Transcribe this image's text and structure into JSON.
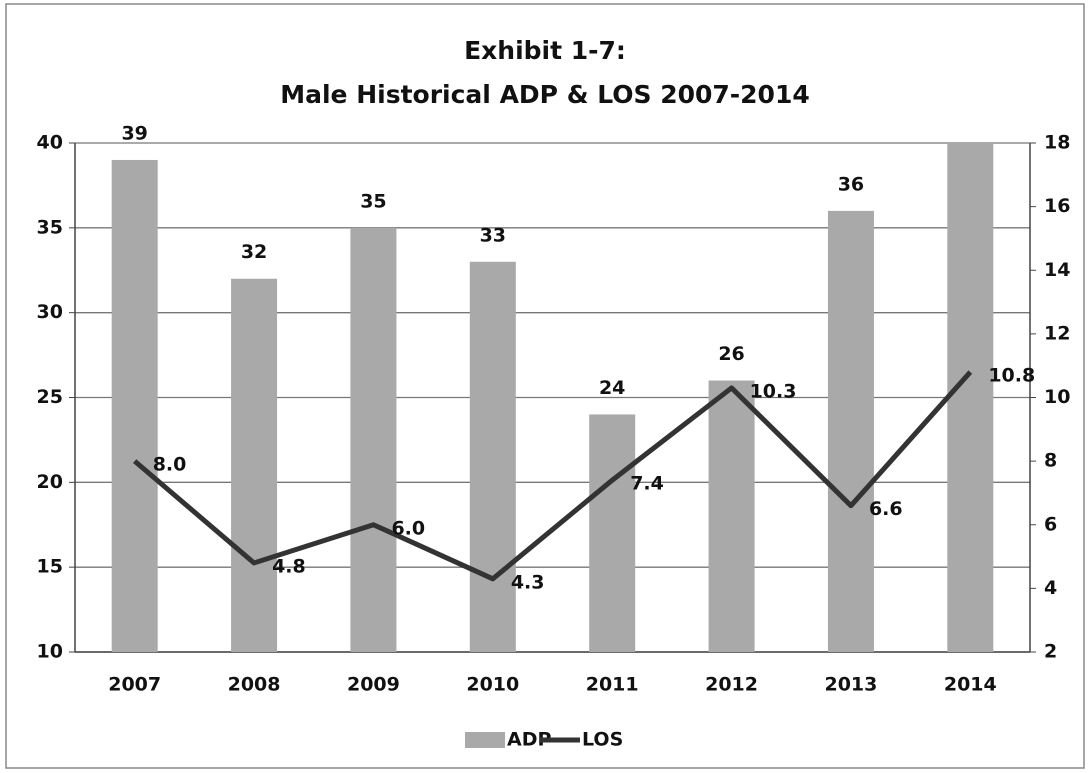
{
  "chart_data": {
    "type": "bar_line",
    "title": "Exhibit 1-7:",
    "subtitle": "Male Historical ADP & LOS 2007-2014",
    "categories": [
      "2007",
      "2008",
      "2009",
      "2010",
      "2011",
      "2012",
      "2013",
      "2014"
    ],
    "series": [
      {
        "name": "ADP",
        "type": "bar",
        "color": "#a9a9a9",
        "values": [
          39,
          32,
          35,
          33,
          24,
          26,
          36,
          40
        ],
        "value_labels": [
          "39",
          "32",
          "35",
          "33",
          "24",
          "26",
          "36",
          null
        ]
      },
      {
        "name": "LOS",
        "type": "line",
        "axis": "y2",
        "color": "#333333",
        "values": [
          8.0,
          4.8,
          6.0,
          4.3,
          7.4,
          10.3,
          6.6,
          10.8
        ],
        "value_labels": [
          "8.0",
          "4.8",
          "6.0",
          "4.3",
          "7.4",
          "10.3",
          "6.6",
          "10.8"
        ]
      }
    ],
    "ylim": [
      10,
      40
    ],
    "yticks": [
      10,
      15,
      20,
      25,
      30,
      35,
      40
    ],
    "y2lim": [
      2,
      18
    ],
    "y2ticks": [
      2,
      4,
      6,
      8,
      10,
      12,
      14,
      16,
      18
    ],
    "grid": true,
    "legend": "bottom"
  }
}
